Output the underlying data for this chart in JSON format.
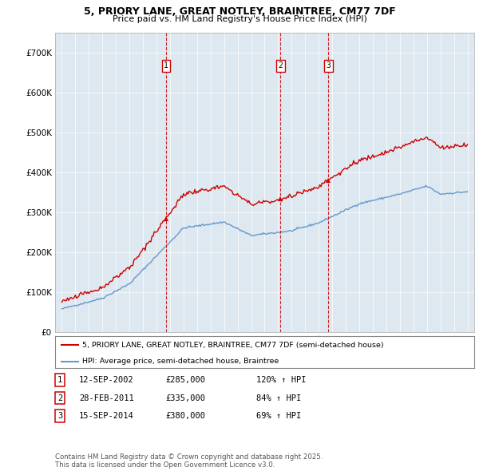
{
  "title_line1": "5, PRIORY LANE, GREAT NOTLEY, BRAINTREE, CM77 7DF",
  "title_line2": "Price paid vs. HM Land Registry's House Price Index (HPI)",
  "xlim": [
    1994.5,
    2025.5
  ],
  "ylim": [
    0,
    750000
  ],
  "yticks": [
    0,
    100000,
    200000,
    300000,
    400000,
    500000,
    600000,
    700000
  ],
  "ytick_labels": [
    "£0",
    "£100K",
    "£200K",
    "£300K",
    "£400K",
    "£500K",
    "£600K",
    "£700K"
  ],
  "xticks": [
    1995,
    1996,
    1997,
    1998,
    1999,
    2000,
    2001,
    2002,
    2003,
    2004,
    2005,
    2006,
    2007,
    2008,
    2009,
    2010,
    2011,
    2012,
    2013,
    2014,
    2015,
    2016,
    2017,
    2018,
    2019,
    2020,
    2021,
    2022,
    2023,
    2024,
    2025
  ],
  "red_line_color": "#cc0000",
  "blue_line_color": "#6699cc",
  "background_color": "#dde8f0",
  "purchase_dates": [
    2002.71,
    2011.16,
    2014.71
  ],
  "purchase_prices": [
    285000,
    335000,
    380000
  ],
  "legend_label_red": "5, PRIORY LANE, GREAT NOTLEY, BRAINTREE, CM77 7DF (semi-detached house)",
  "legend_label_blue": "HPI: Average price, semi-detached house, Braintree",
  "transaction_labels": [
    "1",
    "2",
    "3"
  ],
  "transaction_dates_str": [
    "12-SEP-2002",
    "28-FEB-2011",
    "15-SEP-2014"
  ],
  "transaction_prices_str": [
    "£285,000",
    "£335,000",
    "£380,000"
  ],
  "transaction_hpi_str": [
    "120% ↑ HPI",
    "84% ↑ HPI",
    "69% ↑ HPI"
  ],
  "footer_text": "Contains HM Land Registry data © Crown copyright and database right 2025.\nThis data is licensed under the Open Government Licence v3.0."
}
